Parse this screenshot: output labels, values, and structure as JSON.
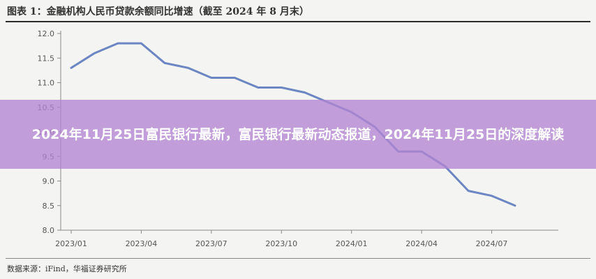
{
  "figure": {
    "title": "图表 1：金融机构人民币贷款余额同比增速（截至 2024 年 8 月末）",
    "source": "数据来源：iFind，华福证券研究所"
  },
  "overlay": {
    "headline": "2024年11月25日富民银行最新，富民银行最新动态报道，2024年11月25日的深度解读"
  },
  "chart_data": {
    "type": "line",
    "title": "",
    "xlabel": "",
    "ylabel": "",
    "x_ticks": [
      "2023/01",
      "2023/04",
      "2023/07",
      "2023/10",
      "2024/01",
      "2024/04",
      "2024/07"
    ],
    "y_ticks": [
      "8.0",
      "8.5",
      "9.0",
      "9.5",
      "10.0",
      "10.5",
      "11.0",
      "11.5",
      "12.0"
    ],
    "ylim": [
      8.0,
      12.0
    ],
    "grid": false,
    "series": [
      {
        "color": "#6b86c2",
        "x": [
          "2023/01",
          "2023/02",
          "2023/03",
          "2023/04",
          "2023/05",
          "2023/06",
          "2023/07",
          "2023/08",
          "2023/09",
          "2023/10",
          "2023/11",
          "2023/12",
          "2024/01",
          "2024/02",
          "2024/03",
          "2024/04",
          "2024/05",
          "2024/06",
          "2024/07",
          "2024/08"
        ],
        "values": [
          11.3,
          11.6,
          11.8,
          11.8,
          11.4,
          11.3,
          11.1,
          11.1,
          10.9,
          10.9,
          10.8,
          10.6,
          10.4,
          10.1,
          9.6,
          9.6,
          9.3,
          8.8,
          8.7,
          8.5
        ]
      }
    ]
  }
}
